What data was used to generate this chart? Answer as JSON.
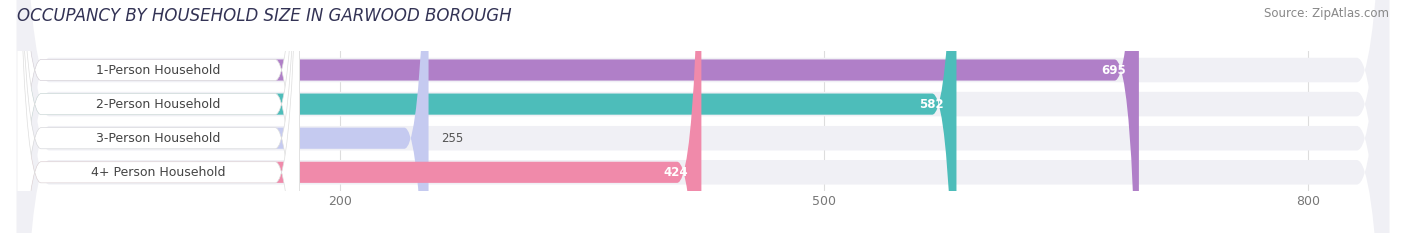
{
  "title": "OCCUPANCY BY HOUSEHOLD SIZE IN GARWOOD BOROUGH",
  "source": "Source: ZipAtlas.com",
  "categories": [
    "1-Person Household",
    "2-Person Household",
    "3-Person Household",
    "4+ Person Household"
  ],
  "values": [
    695,
    582,
    255,
    424
  ],
  "bar_colors": [
    "#b07fc8",
    "#4dbdba",
    "#c5caf0",
    "#f08aaa"
  ],
  "background_color": "#ffffff",
  "row_bg_color": "#f0f0f5",
  "xlim": [
    0,
    850
  ],
  "xticks": [
    200,
    500,
    800
  ],
  "title_fontsize": 12,
  "label_fontsize": 9,
  "value_fontsize": 8.5,
  "source_fontsize": 8.5
}
